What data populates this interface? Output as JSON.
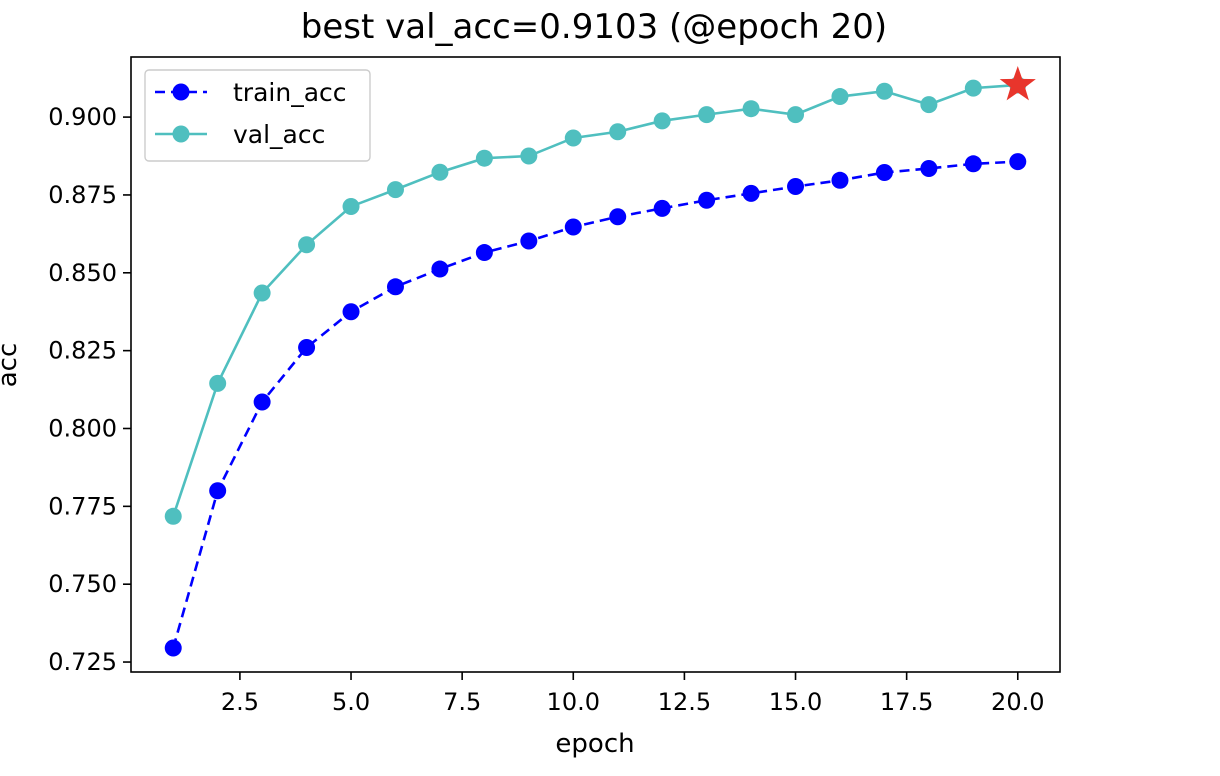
{
  "chart_data": {
    "type": "line",
    "title": "best val_acc=0.9103 (@epoch 20)",
    "xlabel": "epoch",
    "ylabel": "acc",
    "xlim": [
      0.05,
      20.95
    ],
    "ylim": [
      0.7218,
      0.9193
    ],
    "xticks": [
      2.5,
      5.0,
      7.5,
      10.0,
      12.5,
      15.0,
      17.5,
      20.0
    ],
    "xtick_labels": [
      "2.5",
      "5.0",
      "7.5",
      "10.0",
      "12.5",
      "15.0",
      "17.5",
      "20.0"
    ],
    "yticks": [
      0.725,
      0.75,
      0.775,
      0.8,
      0.825,
      0.85,
      0.875,
      0.9
    ],
    "ytick_labels": [
      "0.725",
      "0.750",
      "0.775",
      "0.800",
      "0.825",
      "0.850",
      "0.875",
      "0.900"
    ],
    "grid": false,
    "legend_position": "top-left",
    "x": [
      1,
      2,
      3,
      4,
      5,
      6,
      7,
      8,
      9,
      10,
      11,
      12,
      13,
      14,
      15,
      16,
      17,
      18,
      19,
      20
    ],
    "series": [
      {
        "name": "train_acc",
        "style": "dashed",
        "color": "#0000ff",
        "values": [
          0.7295,
          0.78,
          0.8085,
          0.826,
          0.8375,
          0.8455,
          0.8512,
          0.8565,
          0.8602,
          0.8647,
          0.868,
          0.8707,
          0.8733,
          0.8755,
          0.8777,
          0.8797,
          0.8822,
          0.8835,
          0.885,
          0.8857
        ]
      },
      {
        "name": "val_acc",
        "style": "solid",
        "color": "#4fbfbf",
        "values": [
          0.7718,
          0.8145,
          0.8435,
          0.859,
          0.8713,
          0.8767,
          0.8823,
          0.8868,
          0.8875,
          0.8933,
          0.8953,
          0.8988,
          0.9008,
          0.9027,
          0.9008,
          0.9066,
          0.9083,
          0.904,
          0.9093,
          0.9103
        ]
      }
    ],
    "best_marker": {
      "x": 20,
      "y": 0.9103,
      "color": "#e8352c"
    }
  }
}
